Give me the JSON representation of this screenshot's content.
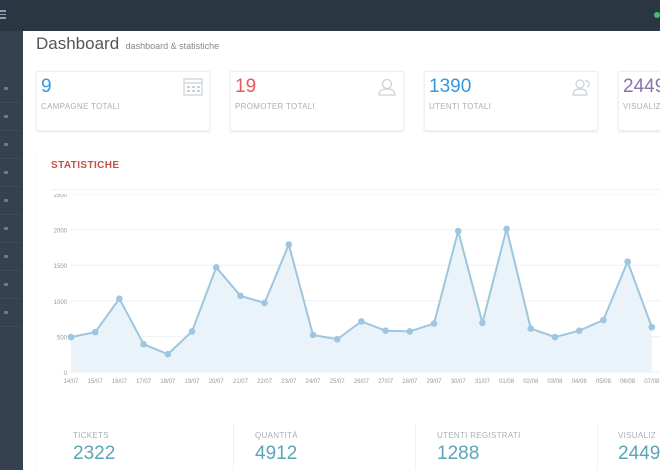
{
  "header": {
    "title": "Dashboard",
    "subtitle": "dashboard & statistiche"
  },
  "stats": [
    {
      "value": "9",
      "label": "CAMPAGNE TOTALI",
      "color": "#3598dc",
      "icon": "calendar-icon"
    },
    {
      "value": "19",
      "label": "PROMOTER TOTALI",
      "color": "#e35b5a",
      "icon": "user-icon"
    },
    {
      "value": "1390",
      "label": "UTENTI TOTALI",
      "color": "#3598dc",
      "icon": "users-icon"
    },
    {
      "value": "2449",
      "label": "VISUALIZ",
      "color": "#8775a7",
      "icon": "eye-icon"
    }
  ],
  "panel": {
    "title": "STATISTICHE"
  },
  "chart_data": {
    "type": "area",
    "title": "",
    "ylim": [
      0,
      2500
    ],
    "yticks": [
      "2500",
      "2000",
      "1500",
      "1000",
      "500",
      "0"
    ],
    "x": [
      "14/07",
      "15/07",
      "16/07",
      "17/07",
      "18/07",
      "19/07",
      "20/07",
      "21/07",
      "22/07",
      "23/07",
      "24/07",
      "25/07",
      "26/07",
      "27/07",
      "28/07",
      "29/07",
      "30/07",
      "31/07",
      "01/08",
      "02/08",
      "03/08",
      "04/08",
      "05/08",
      "06/08",
      "07/08"
    ],
    "series": [
      {
        "values": [
          490,
          560,
          1030,
          390,
          250,
          570,
          1470,
          1070,
          970,
          1790,
          520,
          460,
          710,
          580,
          570,
          680,
          1980,
          690,
          2010,
          610,
          490,
          580,
          730,
          1550,
          630
        ]
      }
    ],
    "line_color": "#9ec6df",
    "fill_color": "#eaf3f9"
  },
  "footer_stats": [
    {
      "label": "TICKETS",
      "value": "2322"
    },
    {
      "label": "QUANTITÀ",
      "value": "4912"
    },
    {
      "label": "UTENTI REGISTRATI",
      "value": "1288"
    },
    {
      "label": "VISUALIZ",
      "value": "2449"
    }
  ]
}
